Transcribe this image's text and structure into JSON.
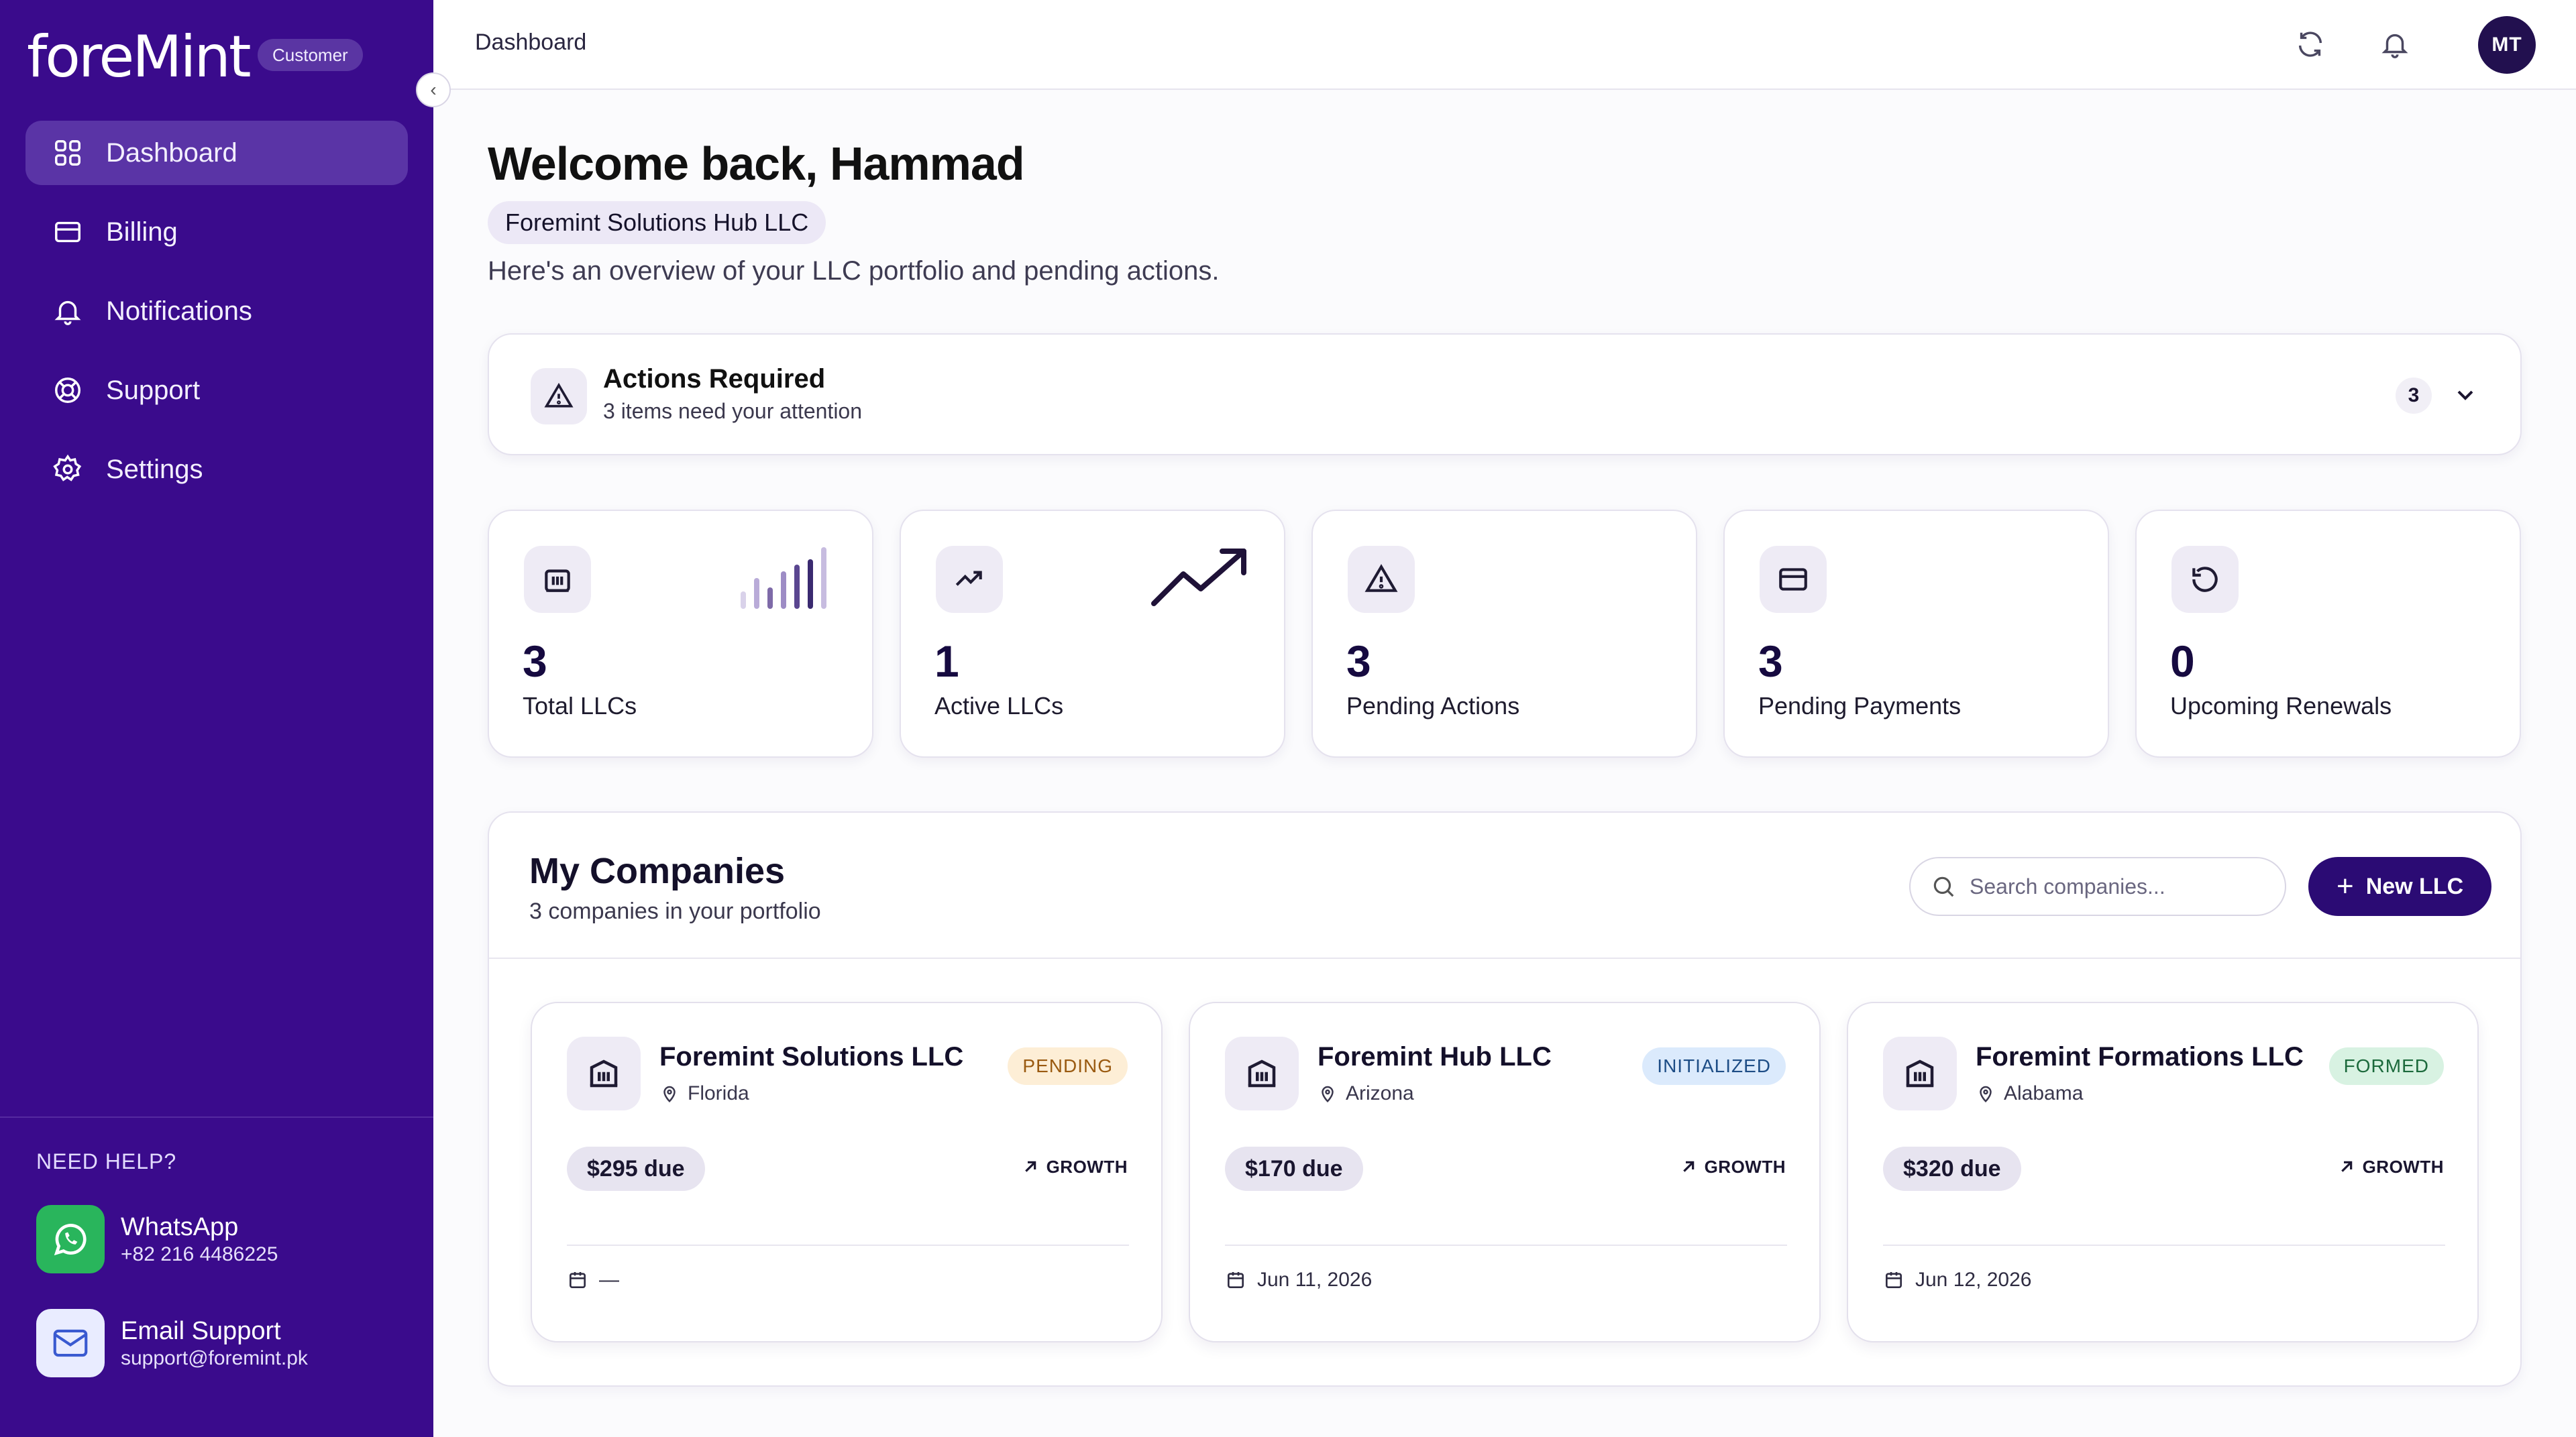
{
  "sidebar": {
    "logo": "foreMint",
    "role_badge": "Customer",
    "nav": [
      {
        "label": "Dashboard",
        "icon": "grid-icon",
        "active": true
      },
      {
        "label": "Billing",
        "icon": "card-icon"
      },
      {
        "label": "Notifications",
        "icon": "bell-icon"
      },
      {
        "label": "Support",
        "icon": "support-icon"
      },
      {
        "label": "Settings",
        "icon": "gear-icon"
      }
    ],
    "help_title": "NEED HELP?",
    "whatsapp": {
      "label": "WhatsApp",
      "value": "+82 216 4486225"
    },
    "email": {
      "label": "Email Support",
      "value": "support@foremint.pk"
    }
  },
  "topbar": {
    "breadcrumb": "Dashboard",
    "avatar_initials": "MT"
  },
  "main": {
    "welcome": "Welcome back, Hammad",
    "company_chip": "Foremint Solutions Hub LLC",
    "overview": "Here's an overview of your LLC portfolio and pending actions.",
    "actions": {
      "title": "Actions Required",
      "subtitle": "3 items need your attention",
      "count": "3"
    },
    "stats": [
      {
        "value": "3",
        "label": "Total LLCs",
        "icon": "building-icon"
      },
      {
        "value": "1",
        "label": "Active LLCs",
        "icon": "trend-up-icon"
      },
      {
        "value": "3",
        "label": "Pending Actions",
        "icon": "warning-icon"
      },
      {
        "value": "3",
        "label": "Pending Payments",
        "icon": "card-icon"
      },
      {
        "value": "0",
        "label": "Upcoming Renewals",
        "icon": "renew-icon"
      }
    ],
    "companies": {
      "title": "My Companies",
      "subtitle": "3 companies in your portfolio",
      "search_placeholder": "Search companies...",
      "new_button": "New LLC",
      "list": [
        {
          "name": "Foremint Solutions LLC",
          "location": "Florida",
          "status": "PENDING",
          "due": "$295 due",
          "plan": "GROWTH",
          "date": "—"
        },
        {
          "name": "Foremint Hub LLC",
          "location": "Arizona",
          "status": "INITIALIZED",
          "due": "$170 due",
          "plan": "GROWTH",
          "date": "Jun 11, 2026"
        },
        {
          "name": "Foremint Formations LLC",
          "location": "Alabama",
          "status": "FORMED",
          "due": "$320 due",
          "plan": "GROWTH",
          "date": "Jun 12, 2026"
        }
      ]
    }
  },
  "colors": {
    "sidebar_bg": "#3a0b8c",
    "primary_button": "#2b0b74",
    "pending": "#fdeed6",
    "initialized": "#dbeafc",
    "formed": "#d8f2e2"
  }
}
